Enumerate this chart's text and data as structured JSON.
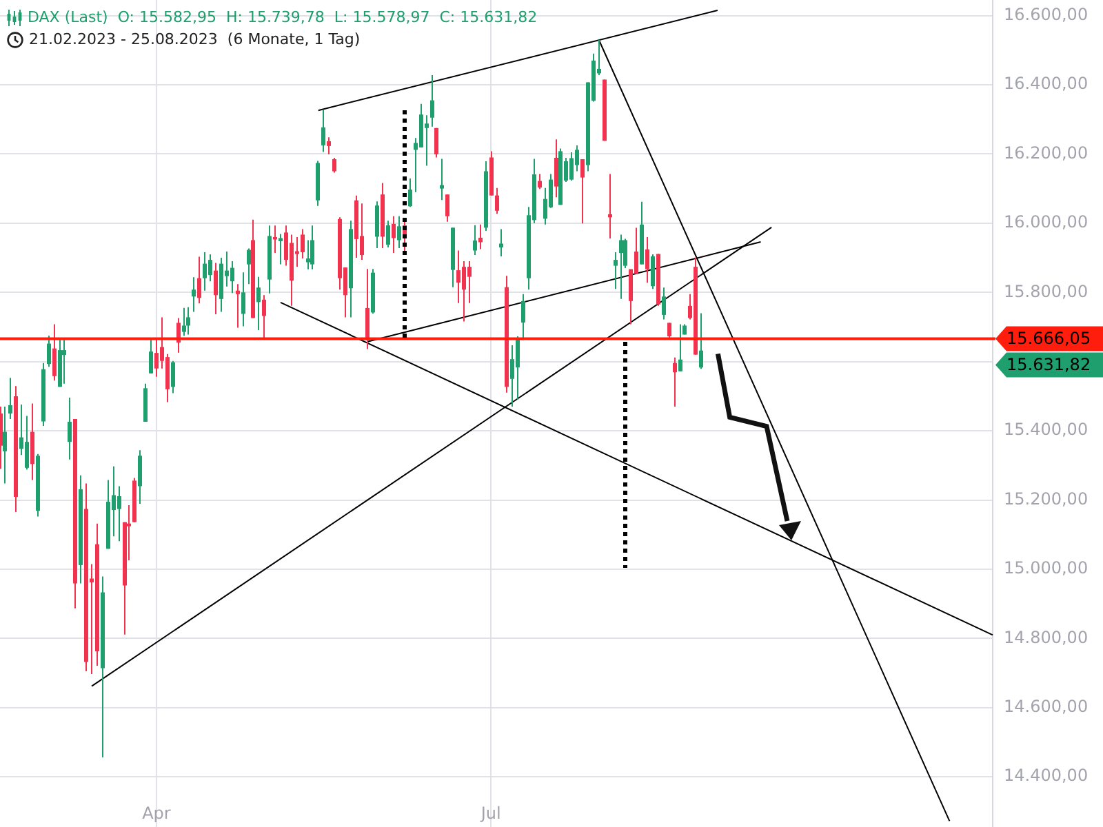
{
  "chart_data": {
    "type": "candlestick",
    "title": "DAX (Last)  O: 15.582,95  H: 15.739,78  L: 15.578,97  C: 15.631,82",
    "subtitle": "21.02.2023 - 25.08.2023  (6 Monate, 1 Tag)",
    "categories": [
      null,
      null,
      null,
      null,
      null,
      null,
      null,
      null,
      null,
      null,
      null,
      null,
      null,
      null,
      null,
      null,
      null,
      null,
      null,
      null,
      null,
      null,
      null,
      null,
      null,
      null,
      null,
      null,
      null,
      "Apr",
      null,
      null,
      null,
      null,
      null,
      null,
      null,
      null,
      null,
      null,
      null,
      null,
      null,
      null,
      null,
      null,
      null,
      null,
      null,
      null,
      null,
      null,
      null,
      null,
      null,
      null,
      null,
      null,
      null,
      null,
      null,
      null,
      null,
      null,
      null,
      null,
      null,
      null,
      null,
      null,
      null,
      null,
      null,
      null,
      null,
      null,
      null,
      null,
      null,
      null,
      null,
      null,
      null,
      null,
      null,
      null,
      null,
      null,
      null,
      null,
      null,
      "Jul",
      null,
      null,
      null,
      null,
      null,
      null,
      null,
      null,
      null,
      null,
      null,
      null,
      null,
      null,
      null,
      null,
      null,
      null,
      null,
      null,
      null,
      null,
      null,
      null,
      null,
      null,
      null,
      null,
      null,
      null,
      null,
      null,
      null,
      null,
      null,
      null,
      null,
      null,
      null,
      null,
      null,
      null,
      null,
      null,
      null,
      null,
      null,
      null,
      null,
      null,
      null,
      null,
      null,
      null,
      null,
      null,
      null,
      null,
      null,
      null,
      null,
      null,
      null,
      null,
      null,
      null,
      null,
      null,
      null,
      null,
      null,
      null,
      null,
      null,
      null,
      null,
      null,
      null,
      null,
      null,
      null,
      null,
      null,
      null,
      null,
      null,
      null,
      null,
      null,
      null,
      null,
      null,
      null
    ],
    "series": [
      {
        "type": "candlestick",
        "ohlc": [
          [
            15450,
            15470,
            15290,
            15357
          ],
          [
            15341,
            15470,
            15248,
            15397
          ],
          [
            15450,
            15553,
            15434,
            15474
          ],
          [
            15500,
            15529,
            15165,
            15209
          ],
          [
            15348,
            15476,
            15330,
            15381
          ],
          [
            15293,
            15443,
            15288,
            15368
          ],
          [
            15397,
            15479,
            15258,
            15304
          ],
          [
            15169,
            15333,
            15152,
            15328
          ],
          [
            15427,
            15596,
            15414,
            15578
          ],
          [
            15593,
            15675,
            15585,
            15652
          ],
          [
            15638,
            15708,
            15545,
            15558
          ],
          [
            15527,
            15668,
            15527,
            15633
          ],
          [
            15619,
            15668,
            15536,
            15633
          ],
          [
            15368,
            15496,
            15317,
            15426
          ],
          [
            15434,
            15434,
            14887,
            14959
          ],
          [
            15012,
            15271,
            14959,
            15231
          ],
          [
            15174,
            15248,
            14705,
            14732
          ],
          [
            14973,
            15015,
            14697,
            14962
          ],
          [
            15072,
            15132,
            14721,
            14763
          ],
          [
            14714,
            14979,
            14456,
            14933
          ],
          [
            15059,
            15258,
            15059,
            15195
          ],
          [
            15171,
            15297,
            15095,
            15214
          ],
          [
            15174,
            15240,
            15081,
            15211
          ],
          [
            15136,
            15136,
            14811,
            14953
          ],
          [
            15132,
            15185,
            15026,
            15124
          ],
          [
            15256,
            15264,
            15136,
            15136
          ],
          [
            15240,
            15344,
            15189,
            15328
          ],
          [
            15426,
            15536,
            15426,
            15523
          ],
          [
            15566,
            15668,
            15566,
            15629
          ],
          [
            15625,
            15668,
            15556,
            15580
          ],
          [
            15642,
            15728,
            15580,
            15602
          ],
          [
            15613,
            15622,
            15483,
            15520
          ],
          [
            15527,
            15602,
            15509,
            15598
          ],
          [
            15712,
            15726,
            15626,
            15655
          ],
          [
            15686,
            15755,
            15675,
            15704
          ],
          [
            15704,
            15757,
            15678,
            15728
          ],
          [
            15788,
            15844,
            15744,
            15808
          ],
          [
            15841,
            15903,
            15768,
            15784
          ],
          [
            15841,
            15916,
            15805,
            15883
          ],
          [
            15850,
            15910,
            15832,
            15894
          ],
          [
            15863,
            15885,
            15737,
            15792
          ],
          [
            15781,
            15900,
            15744,
            15883
          ],
          [
            15847,
            15918,
            15817,
            15863
          ],
          [
            15832,
            15890,
            15798,
            15871
          ],
          [
            15805,
            15824,
            15698,
            15795
          ],
          [
            15738,
            15858,
            15702,
            15800
          ],
          [
            15881,
            15927,
            15824,
            15923
          ],
          [
            15951,
            16010,
            15726,
            15726
          ],
          [
            15772,
            15845,
            15691,
            15814
          ],
          [
            15779,
            15792,
            15665,
            15732
          ],
          [
            15837,
            15993,
            15797,
            15963
          ],
          [
            15960,
            15993,
            15914,
            15953
          ],
          [
            15948,
            15969,
            15881,
            15957
          ],
          [
            15973,
            15993,
            15877,
            15894
          ],
          [
            15943,
            15967,
            15761,
            15834
          ],
          [
            15919,
            15960,
            15874,
            15911
          ],
          [
            15967,
            15983,
            15898,
            15916
          ],
          [
            15887,
            15951,
            15867,
            15898
          ],
          [
            15881,
            15993,
            15867,
            15951
          ],
          [
            16066,
            16180,
            16050,
            16174
          ],
          [
            16225,
            16329,
            16206,
            16277
          ],
          [
            16237,
            16248,
            16199,
            16223
          ],
          [
            16185,
            16189,
            16146,
            16150
          ],
          [
            16012,
            16017,
            15808,
            15841
          ],
          [
            15872,
            15872,
            15728,
            15792
          ],
          [
            15812,
            16007,
            15728,
            15983
          ],
          [
            16066,
            16080,
            15900,
            15954
          ],
          [
            15963,
            16057,
            15894,
            15908
          ],
          [
            15755,
            15868,
            15636,
            15662
          ],
          [
            15742,
            15868,
            15739,
            15857
          ],
          [
            15961,
            16063,
            15928,
            16051
          ],
          [
            16083,
            16116,
            15928,
            15961
          ],
          [
            15938,
            16007,
            15930,
            15994
          ],
          [
            15998,
            16020,
            15914,
            15957
          ],
          [
            15951,
            16020,
            15928,
            15991
          ],
          [
            15994,
            16005,
            15918,
            15960
          ],
          [
            16049,
            16129,
            16047,
            16097
          ],
          [
            16212,
            16246,
            16090,
            16232
          ],
          [
            16219,
            16345,
            16219,
            16314
          ],
          [
            16275,
            16312,
            16166,
            16288
          ],
          [
            16305,
            16428,
            16279,
            16355
          ],
          [
            16275,
            16275,
            16190,
            16199
          ],
          [
            16100,
            16186,
            16067,
            16110
          ],
          [
            16083,
            16083,
            16004,
            16020
          ],
          [
            15865,
            15987,
            15815,
            15987
          ],
          [
            15864,
            15921,
            15769,
            15828
          ],
          [
            15874,
            15890,
            15716,
            15808
          ],
          [
            15874,
            15890,
            15769,
            15845
          ],
          [
            15921,
            15994,
            15908,
            15950
          ],
          [
            15958,
            15996,
            15925,
            15945
          ],
          [
            15987,
            16179,
            15978,
            16150
          ],
          [
            16190,
            16208,
            16080,
            16080
          ],
          [
            16080,
            16102,
            16027,
            16036
          ],
          [
            15930,
            15983,
            15904,
            15941
          ],
          [
            15815,
            15848,
            15510,
            15527
          ],
          [
            15550,
            15647,
            15470,
            15607
          ],
          [
            15583,
            15673,
            15490,
            15665
          ],
          [
            15713,
            15795,
            15662,
            15775
          ],
          [
            15841,
            16047,
            15808,
            16023
          ],
          [
            16009,
            16186,
            16000,
            16141
          ],
          [
            16122,
            16142,
            16099,
            16103
          ],
          [
            16013,
            16102,
            15996,
            16070
          ],
          [
            16046,
            16142,
            16044,
            16126
          ],
          [
            16189,
            16242,
            16075,
            16106
          ],
          [
            16053,
            16216,
            16053,
            16208
          ],
          [
            16123,
            16189,
            16119,
            16179
          ],
          [
            16126,
            16205,
            16123,
            16188
          ],
          [
            16168,
            16225,
            16150,
            16212
          ],
          [
            16185,
            16185,
            15999,
            16132
          ],
          [
            16168,
            16407,
            16150,
            16407
          ],
          [
            16354,
            16490,
            16351,
            16470
          ],
          [
            16433,
            16530,
            16428,
            16446
          ],
          [
            16415,
            16415,
            16238,
            16238
          ],
          [
            16026,
            16142,
            15956,
            16017
          ],
          [
            15877,
            15916,
            15810,
            15894
          ],
          [
            15914,
            15967,
            15781,
            15951
          ],
          [
            15877,
            15955,
            15870,
            15951
          ],
          [
            15867,
            15867,
            15708,
            15775
          ],
          [
            15918,
            15987,
            15854,
            15854
          ],
          [
            15881,
            16062,
            15881,
            15996
          ],
          [
            15924,
            15960,
            15828,
            15867
          ],
          [
            15818,
            15910,
            15810,
            15904
          ],
          [
            15911,
            15911,
            15761,
            15765
          ],
          [
            15735,
            15814,
            15722,
            15788
          ],
          [
            15712,
            15712,
            15669,
            15673
          ],
          [
            15596,
            15612,
            15470,
            15569
          ],
          [
            15572,
            15708,
            15572,
            15606
          ],
          [
            15678,
            15708,
            15678,
            15704
          ],
          [
            15761,
            15795,
            15722,
            15726
          ],
          [
            15874,
            15900,
            15620,
            15620
          ],
          [
            15582.95,
            15739.78,
            15578.97,
            15631.82
          ],
          null,
          null,
          null,
          null,
          null,
          null,
          null,
          null,
          null,
          null,
          null,
          null,
          null,
          null,
          null,
          null,
          null,
          null,
          null,
          null,
          null,
          null,
          null,
          null,
          null,
          null,
          null,
          null,
          null,
          null,
          null,
          null,
          null,
          null,
          null,
          null,
          null,
          null,
          null,
          null,
          null,
          null,
          null,
          null,
          null,
          null,
          null,
          null,
          null,
          null,
          null,
          null,
          null,
          null
        ],
        "colors": [
          "#f2334f",
          "#1f9e6e",
          "#1f9e6e",
          "#f2334f",
          "#1f9e6e",
          "#1f9e6e",
          "#f2334f",
          "#1f9e6e",
          "#1f9e6e",
          "#1f9e6e",
          "#f2334f",
          "#1f9e6e",
          "#1f9e6e",
          "#1f9e6e",
          "#f2334f",
          "#1f9e6e",
          "#f2334f",
          "#f2334f",
          "#f2334f",
          "#1f9e6e",
          "#1f9e6e",
          "#1f9e6e",
          "#1f9e6e",
          "#f2334f",
          "#f2334f",
          "#f2334f",
          "#1f9e6e",
          "#1f9e6e",
          "#1f9e6e",
          "#f2334f",
          "#f2334f",
          "#f2334f",
          "#1f9e6e",
          "#f2334f",
          "#1f9e6e",
          "#1f9e6e",
          "#1f9e6e",
          "#f2334f",
          "#1f9e6e",
          "#1f9e6e",
          "#f2334f",
          "#1f9e6e",
          "#1f9e6e",
          "#1f9e6e",
          "#f2334f",
          "#1f9e6e",
          "#1f9e6e",
          "#f2334f",
          "#1f9e6e",
          "#f2334f",
          "#1f9e6e",
          "#f2334f",
          "#1f9e6e",
          "#f2334f",
          "#f2334f",
          "#f2334f",
          "#f2334f",
          "#1f9e6e",
          "#1f9e6e",
          "#1f9e6e",
          "#1f9e6e",
          "#f2334f",
          "#f2334f",
          "#f2334f",
          "#f2334f",
          "#1f9e6e",
          "#f2334f",
          "#f2334f",
          "#f2334f",
          "#1f9e6e",
          "#1f9e6e",
          "#f2334f",
          "#1f9e6e",
          "#f2334f",
          "#1f9e6e",
          "#f2334f",
          "#1f9e6e",
          "#1f9e6e",
          "#1f9e6e",
          "#1f9e6e",
          "#1f9e6e",
          "#f2334f",
          "#1f9e6e",
          "#f2334f",
          "#1f9e6e",
          "#f2334f",
          "#f2334f",
          "#f2334f",
          "#1f9e6e",
          "#f2334f",
          "#1f9e6e",
          "#f2334f",
          "#f2334f",
          "#1f9e6e",
          "#f2334f",
          "#1f9e6e",
          "#1f9e6e",
          "#1f9e6e",
          "#1f9e6e",
          "#1f9e6e",
          "#f2334f",
          "#1f9e6e",
          "#1f9e6e",
          "#f2334f",
          "#1f9e6e",
          "#1f9e6e",
          "#1f9e6e",
          "#1f9e6e",
          "#f2334f",
          "#1f9e6e",
          "#1f9e6e",
          "#1f9e6e",
          "#f2334f",
          "#f2334f",
          "#1f9e6e",
          "#1f9e6e",
          "#1f9e6e",
          "#f2334f",
          "#f2334f",
          "#1f9e6e",
          "#f2334f",
          "#1f9e6e",
          "#f2334f",
          "#1f9e6e",
          "#f2334f",
          "#f2334f",
          "#1f9e6e",
          "#1f9e6e",
          "#f2334f",
          "#f2334f",
          "#1f9e6e",
          null,
          null,
          null,
          null,
          null,
          null,
          null,
          null,
          null,
          null,
          null,
          null,
          null,
          null,
          null,
          null,
          null,
          null,
          null,
          null,
          null,
          null,
          null,
          null,
          null,
          null,
          null,
          null,
          null,
          null,
          null,
          null,
          null,
          null,
          null,
          null,
          null,
          null,
          null,
          null,
          null,
          null,
          null,
          null,
          null,
          null,
          null,
          null,
          null,
          null,
          null,
          null,
          null,
          null
        ]
      },
      {
        "type": "line",
        "color": "#000000",
        "values": [
          null,
          null,
          null,
          null,
          null,
          null,
          null,
          null,
          null,
          null,
          null,
          null,
          null,
          null,
          null,
          null,
          null,
          null,
          null,
          null,
          null,
          null,
          null,
          null,
          null,
          null,
          null,
          null,
          null,
          null,
          null,
          null,
          null,
          null,
          null,
          null,
          null,
          null,
          null,
          null,
          null,
          null,
          null,
          null,
          null,
          null,
          null,
          null,
          null,
          null,
          null,
          null,
          null,
          null,
          null,
          null,
          null,
          null,
          null,
          16326,
          null,
          null,
          null,
          null,
          null,
          null,
          null,
          null,
          null,
          null,
          null,
          null,
          null,
          null,
          null,
          null,
          null,
          null,
          null,
          null,
          null,
          null,
          null,
          null,
          null,
          null,
          null,
          null,
          null,
          null,
          null,
          null,
          null,
          null,
          null,
          null,
          null,
          null,
          null,
          null,
          null,
          null,
          null,
          null,
          null,
          null,
          null,
          null,
          null,
          null,
          null,
          null,
          null,
          null,
          null,
          null,
          null,
          null,
          null,
          null,
          null,
          null,
          null,
          null,
          null,
          null,
          null,
          null,
          null,
          null,
          null,
          null,
          null,
          16615,
          null,
          null,
          null,
          null,
          null,
          null,
          null,
          null,
          null,
          null,
          null,
          null,
          null,
          null,
          null,
          null,
          null,
          null,
          null,
          null,
          null,
          null,
          null,
          null,
          null,
          null,
          null,
          null,
          null,
          null,
          null,
          null,
          null,
          null,
          null,
          null,
          null,
          null,
          null,
          null,
          null,
          null,
          null,
          null,
          null,
          null,
          null,
          null,
          null,
          null,
          null
        ]
      },
      {
        "type": "line",
        "color": "#000000",
        "values": [
          null,
          null,
          null,
          null,
          null,
          null,
          null,
          null,
          null,
          null,
          null,
          null,
          null,
          null,
          null,
          null,
          null,
          null,
          null,
          null,
          null,
          null,
          null,
          null,
          null,
          null,
          null,
          null,
          null,
          null,
          null,
          null,
          null,
          null,
          null,
          null,
          null,
          null,
          null,
          null,
          null,
          null,
          null,
          null,
          null,
          null,
          null,
          null,
          null,
          null,
          null,
          null,
          15771,
          null,
          null,
          null,
          null,
          null,
          null,
          null,
          null,
          null,
          null,
          null,
          null,
          null,
          null,
          null,
          null,
          null,
          null,
          null,
          null,
          null,
          null,
          null,
          null,
          null,
          null,
          null,
          null,
          null,
          null,
          null,
          null,
          null,
          null,
          null,
          null,
          null,
          null,
          null,
          null,
          null,
          null,
          null,
          null,
          null,
          null,
          null,
          null,
          null,
          null,
          null,
          null,
          null,
          null,
          null,
          null,
          null,
          null,
          null,
          null,
          null,
          null,
          null,
          null,
          null,
          null,
          null,
          null,
          null,
          null,
          null,
          null,
          null,
          null,
          null,
          null,
          null,
          null,
          null,
          null,
          null,
          null,
          null,
          null,
          null,
          null,
          null,
          null,
          null,
          null,
          null,
          null,
          null,
          null,
          null,
          null,
          null,
          null,
          null,
          null,
          null,
          null,
          null,
          null,
          null,
          null,
          null,
          null,
          null,
          null,
          null,
          null,
          null,
          null,
          null,
          null,
          null,
          null,
          null,
          null,
          null,
          null,
          null,
          null,
          null,
          null,
          null,
          null,
          null,
          null,
          null,
          14810
        ]
      },
      {
        "type": "line",
        "color": "#000000",
        "values": [
          null,
          null,
          null,
          null,
          null,
          null,
          null,
          null,
          null,
          null,
          null,
          null,
          null,
          null,
          null,
          null,
          null,
          14662,
          null,
          null,
          null,
          null,
          null,
          null,
          null,
          null,
          null,
          null,
          null,
          null,
          null,
          null,
          null,
          null,
          null,
          null,
          null,
          null,
          null,
          null,
          null,
          null,
          null,
          null,
          null,
          null,
          null,
          null,
          null,
          null,
          null,
          null,
          null,
          null,
          null,
          null,
          null,
          null,
          null,
          null,
          null,
          null,
          null,
          null,
          null,
          null,
          null,
          null,
          null,
          null,
          null,
          null,
          null,
          null,
          null,
          null,
          null,
          null,
          null,
          null,
          null,
          null,
          null,
          null,
          null,
          null,
          null,
          null,
          null,
          null,
          null,
          null,
          null,
          null,
          null,
          null,
          null,
          null,
          null,
          null,
          null,
          null,
          null,
          null,
          null,
          null,
          null,
          null,
          null,
          null,
          null,
          null,
          null,
          null,
          null,
          null,
          null,
          null,
          null,
          null,
          null,
          null,
          null,
          null,
          null,
          null,
          null,
          null,
          null,
          null,
          null,
          null,
          null,
          null,
          null,
          null,
          null,
          null,
          null,
          null,
          null,
          null,
          null,
          15988,
          null,
          null,
          null,
          null,
          null,
          null,
          null,
          null,
          null,
          null,
          null,
          null,
          null,
          null,
          null,
          null,
          null,
          null,
          null,
          null,
          null,
          null,
          null,
          null,
          null,
          null,
          null,
          null,
          null,
          null,
          null,
          null,
          null,
          null,
          null,
          null,
          null,
          null,
          null,
          null,
          null
        ]
      },
      {
        "type": "line",
        "color": "#000000",
        "values": [
          null,
          null,
          null,
          null,
          null,
          null,
          null,
          null,
          null,
          null,
          null,
          null,
          null,
          null,
          null,
          null,
          null,
          null,
          null,
          null,
          null,
          null,
          null,
          null,
          null,
          null,
          null,
          null,
          null,
          null,
          null,
          null,
          null,
          null,
          null,
          null,
          null,
          null,
          null,
          null,
          null,
          null,
          null,
          null,
          null,
          null,
          null,
          null,
          null,
          null,
          null,
          null,
          null,
          null,
          null,
          null,
          null,
          null,
          null,
          null,
          null,
          null,
          null,
          null,
          null,
          null,
          null,
          null,
          15657,
          null,
          null,
          null,
          null,
          null,
          null,
          null,
          null,
          null,
          null,
          null,
          null,
          null,
          null,
          null,
          null,
          null,
          null,
          null,
          null,
          null,
          null,
          null,
          null,
          null,
          null,
          null,
          null,
          null,
          null,
          null,
          null,
          null,
          null,
          null,
          null,
          null,
          null,
          null,
          null,
          null,
          null,
          null,
          null,
          null,
          null,
          null,
          null,
          null,
          null,
          null,
          null,
          null,
          null,
          null,
          null,
          null,
          null,
          null,
          null,
          null,
          null,
          null,
          null,
          null,
          null,
          null,
          null,
          null,
          null,
          null,
          null,
          15946,
          null,
          null,
          null,
          null,
          null,
          null,
          null,
          null,
          null,
          null,
          null,
          null,
          null,
          null,
          null,
          null,
          null,
          null,
          null,
          null,
          null,
          null,
          null,
          null,
          null,
          null,
          null,
          null,
          null,
          null,
          null,
          null,
          null,
          null,
          null,
          null,
          null,
          null,
          null,
          null,
          null,
          null,
          null
        ]
      },
      {
        "type": "line",
        "color": "#000000",
        "values": [
          null,
          null,
          null,
          null,
          null,
          null,
          null,
          null,
          null,
          null,
          null,
          null,
          null,
          null,
          null,
          null,
          null,
          null,
          null,
          null,
          null,
          null,
          null,
          null,
          null,
          null,
          null,
          null,
          null,
          null,
          null,
          null,
          null,
          null,
          null,
          null,
          null,
          null,
          null,
          null,
          null,
          null,
          null,
          null,
          null,
          null,
          null,
          null,
          null,
          null,
          null,
          null,
          null,
          null,
          null,
          null,
          null,
          null,
          null,
          null,
          null,
          null,
          null,
          null,
          null,
          null,
          null,
          null,
          null,
          null,
          null,
          null,
          null,
          null,
          null,
          null,
          null,
          null,
          null,
          null,
          null,
          null,
          null,
          null,
          null,
          null,
          null,
          null,
          null,
          null,
          null,
          null,
          null,
          null,
          null,
          null,
          null,
          null,
          null,
          null,
          null,
          null,
          null,
          null,
          null,
          null,
          null,
          null,
          null,
          null,
          null,
          16530,
          null,
          null,
          null,
          null,
          null,
          null,
          null,
          null,
          null,
          null,
          null,
          null,
          null,
          null,
          null,
          null,
          null,
          null,
          null,
          null,
          null,
          null,
          null,
          null,
          null,
          null,
          null,
          null,
          null,
          null,
          null,
          null,
          null,
          null,
          null,
          null,
          null,
          null,
          null,
          null,
          null,
          null,
          null,
          null,
          null,
          null,
          null,
          null,
          null,
          null,
          null,
          null,
          null,
          null,
          null,
          null,
          null,
          null,
          null,
          null,
          null,
          null,
          null,
          null,
          14272,
          null,
          null,
          null,
          null,
          null,
          null,
          null,
          null
        ]
      }
    ],
    "ylim": [
      14255,
      16645
    ],
    "yticks": [
      {
        "value": 14400,
        "label": "14.400,00"
      },
      {
        "value": 14600,
        "label": "14.600,00"
      },
      {
        "value": 14800,
        "label": "14.800,00"
      },
      {
        "value": 15000,
        "label": "15.000,00"
      },
      {
        "value": 15200,
        "label": "15.200,00"
      },
      {
        "value": 15400,
        "label": "15.400,00"
      },
      {
        "value": 15600,
        "label": null
      },
      {
        "value": 15800,
        "label": "15.800,00"
      },
      {
        "value": 16000,
        "label": "16.000,00"
      },
      {
        "value": 16200,
        "label": "16.200,00"
      },
      {
        "value": 16400,
        "label": "16.400,00"
      },
      {
        "value": 16600,
        "label": "16.600,00"
      }
    ],
    "grid": true,
    "ref_lines": [
      {
        "axis": "y",
        "value": 15666.05,
        "label": "15.666,05",
        "color": "#ff1e0e"
      }
    ],
    "annotations": [
      "15.631,82"
    ]
  }
}
